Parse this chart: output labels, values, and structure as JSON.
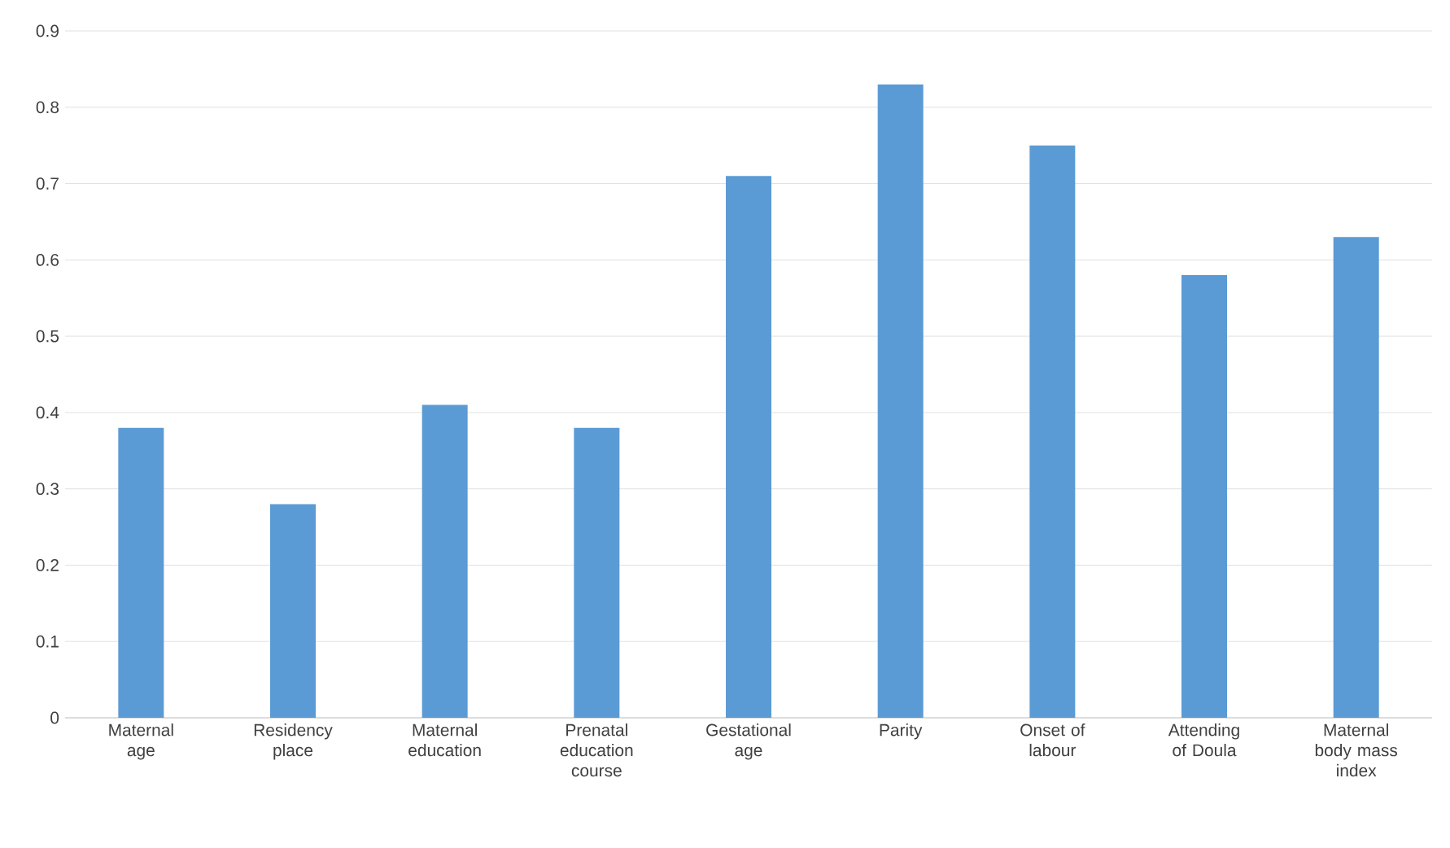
{
  "chart_data": {
    "type": "bar",
    "categories": [
      "Maternal age",
      "Residency place",
      "Maternal education",
      "Prenatal education course",
      "Gestational age",
      "Parity",
      "Onset of labour",
      "Attending of Doula",
      "Maternal body mass index"
    ],
    "values": [
      0.38,
      0.28,
      0.41,
      0.38,
      0.71,
      0.83,
      0.75,
      0.58,
      0.63
    ],
    "color": "#5b9bd5",
    "ylim": [
      0,
      0.9
    ],
    "yticks": [
      0,
      0.1,
      0.2,
      0.3,
      0.4,
      0.5,
      0.6,
      0.7,
      0.8,
      0.9
    ],
    "grid": "y"
  }
}
